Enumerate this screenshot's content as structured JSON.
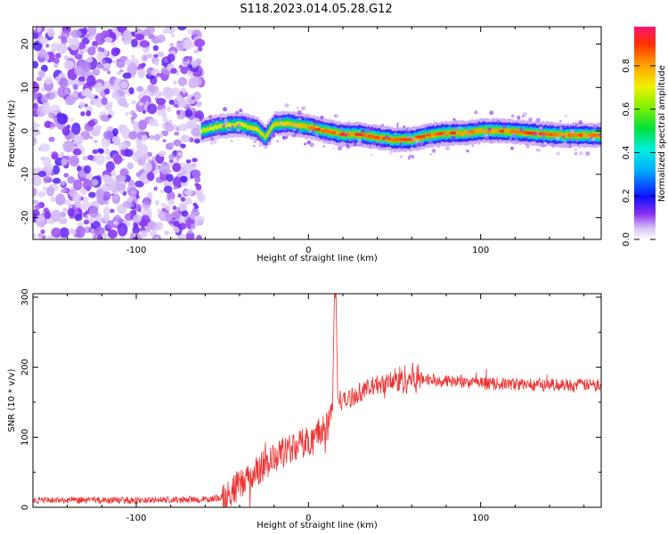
{
  "title": "S118.2023.014.05.28.G12",
  "chart_data": [
    {
      "type": "heatmap",
      "xlabel": "Height of straight line (km)",
      "ylabel": "Frequency (Hz)",
      "xlim": [
        -160,
        170
      ],
      "ylim": [
        -25,
        24
      ],
      "xticks": [
        -100,
        0,
        100
      ],
      "yticks": [
        -20,
        -10,
        0,
        10,
        20
      ],
      "colorbar": {
        "label": "Normalized spectral amplitude",
        "range": [
          0,
          0.98
        ],
        "ticks": [
          0.0,
          0.2,
          0.4,
          0.6,
          0.8
        ]
      },
      "ridge": {
        "x": [
          -62,
          -55,
          -48,
          -40,
          -35,
          -30,
          -25,
          -20,
          -12,
          -5,
          0,
          10,
          20,
          30,
          40,
          50,
          60,
          70,
          80,
          90,
          100,
          110,
          120,
          130,
          140,
          150,
          160,
          170
        ],
        "frequency": [
          0.0,
          0.8,
          1.2,
          1.5,
          1.0,
          0.5,
          -1.5,
          1.5,
          1.8,
          1.2,
          1.0,
          0.0,
          -0.8,
          -0.8,
          -1.5,
          -2.0,
          -2.0,
          -1.0,
          -0.5,
          -0.5,
          0.0,
          0.0,
          -0.2,
          -0.5,
          -0.8,
          -1.0,
          -1.0,
          -1.0
        ]
      },
      "noise_region_x": [
        -160,
        -62
      ]
    },
    {
      "type": "line",
      "xlabel": "Height of straight line (km)",
      "ylabel": "SNR (10 * v/v)",
      "xlim": [
        -160,
        170
      ],
      "ylim": [
        0,
        305
      ],
      "xticks": [
        -100,
        0,
        100
      ],
      "yticks": [
        0,
        100,
        200,
        300
      ],
      "color": "#ee3333",
      "trend": {
        "x": [
          -160,
          -100,
          -60,
          -50,
          -40,
          -30,
          -20,
          -10,
          0,
          10,
          14,
          15,
          16,
          17,
          20,
          30,
          40,
          50,
          60,
          70,
          80,
          100,
          130,
          170
        ],
        "y": [
          10,
          10,
          11,
          14,
          30,
          52,
          70,
          85,
          95,
          115,
          140,
          300,
          300,
          160,
          150,
          165,
          175,
          180,
          185,
          183,
          180,
          177,
          175,
          175
        ]
      },
      "noise_amplitude": [
        {
          "x_from": -160,
          "x_to": -50,
          "amp": 5
        },
        {
          "x_from": -50,
          "x_to": 15,
          "amp": 22
        },
        {
          "x_from": 15,
          "x_to": 50,
          "amp": 14
        },
        {
          "x_from": 50,
          "x_to": 65,
          "amp": 22
        },
        {
          "x_from": 65,
          "x_to": 170,
          "amp": 9
        }
      ]
    }
  ]
}
